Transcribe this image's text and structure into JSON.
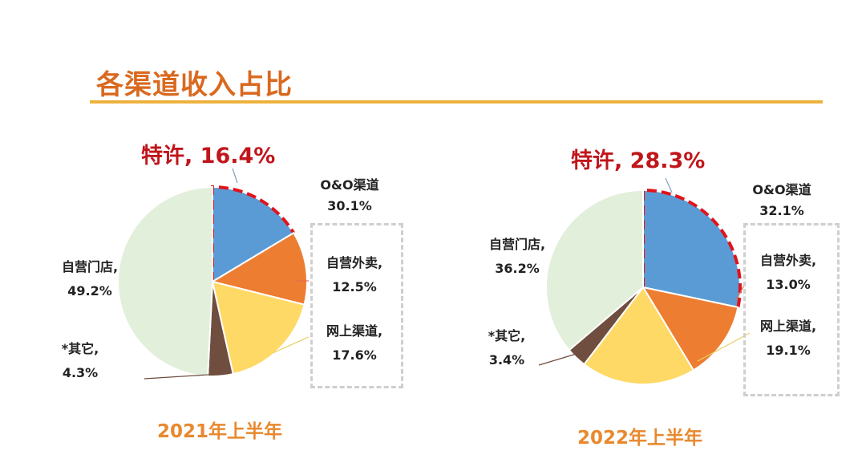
{
  "title": "各渠道收入占比",
  "colors": {
    "特许": "#5B9BD5",
    "自营外卖": "#ED7D31",
    "网上渠道": "#FFD966",
    "其它": "#6F4E3F",
    "自营门店": "#E2EFDA",
    "highlight": "#E0141B",
    "title": "#D9691F",
    "rule": "#EDB23C"
  },
  "chart_data": [
    {
      "type": "pie",
      "title": "2021年上半年",
      "order": "clockwise from top",
      "slices": [
        {
          "name": "特许",
          "value": 16.4,
          "label": "特许, 16.4%"
        },
        {
          "name": "自营外卖",
          "value": 12.5,
          "label": "自营外卖,",
          "pct": "12.5%"
        },
        {
          "name": "网上渠道",
          "value": 17.6,
          "label": "网上渠道,",
          "pct": "17.6%"
        },
        {
          "name": "其它",
          "value": 4.3,
          "label": "*其它,",
          "pct": "4.3%"
        },
        {
          "name": "自营门店",
          "value": 49.2,
          "label": "自营门店,",
          "pct": "49.2%"
        }
      ],
      "group_label": {
        "text": "O&O渠道",
        "pct": "30.1%"
      }
    },
    {
      "type": "pie",
      "title": "2022年上半年",
      "order": "clockwise from top",
      "slices": [
        {
          "name": "特许",
          "value": 28.3,
          "label": "特许, 28.3%"
        },
        {
          "name": "自营外卖",
          "value": 13.0,
          "label": "自营外卖,",
          "pct": "13.0%"
        },
        {
          "name": "网上渠道",
          "value": 19.1,
          "label": "网上渠道,",
          "pct": "19.1%"
        },
        {
          "name": "其它",
          "value": 3.4,
          "label": "*其它,",
          "pct": "3.4%"
        },
        {
          "name": "自营门店",
          "value": 36.2,
          "label": "自营门店,",
          "pct": "36.2%"
        }
      ],
      "group_label": {
        "text": "O&O渠道",
        "pct": "32.1%"
      }
    }
  ]
}
